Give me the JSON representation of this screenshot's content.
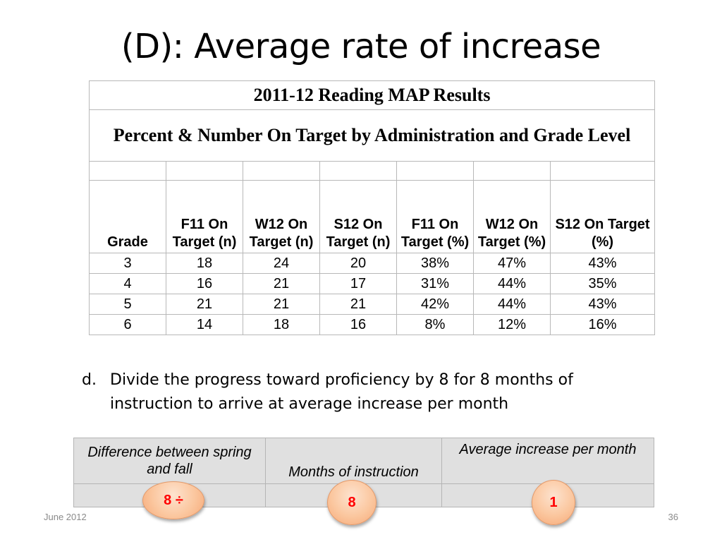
{
  "slide": {
    "title": "(D): Average rate of increase",
    "footer_date": "June 2012",
    "page_number": "36"
  },
  "map_table": {
    "title": "2011-12 Reading MAP Results",
    "subtitle": "Percent & Number On Target by Administration and Grade Level",
    "headers": [
      "Grade",
      "F11 On Target (n)",
      "W12 On Target (n)",
      "S12 On Target (n)",
      "F11 On Target (%)",
      "W12 On Target (%)",
      "S12 On Target (%)"
    ],
    "rows": [
      [
        "3",
        "18",
        "24",
        "20",
        "38%",
        "47%",
        "43%"
      ],
      [
        "4",
        "16",
        "21",
        "17",
        "31%",
        "44%",
        "35%"
      ],
      [
        "5",
        "21",
        "21",
        "21",
        "42%",
        "44%",
        "43%"
      ],
      [
        "6",
        "14",
        "18",
        "16",
        "8%",
        "12%",
        "16%"
      ]
    ]
  },
  "instruction": {
    "letter": "d.",
    "text": "Divide the progress toward proficiency by 8 for 8 months of instruction to arrive at average increase per month"
  },
  "calc_table": {
    "headers": [
      "Difference between spring and fall",
      "Months of instruction",
      "Average increase per month"
    ]
  },
  "bubbles": {
    "difference": "8 ÷",
    "months": "8",
    "average": "1"
  }
}
